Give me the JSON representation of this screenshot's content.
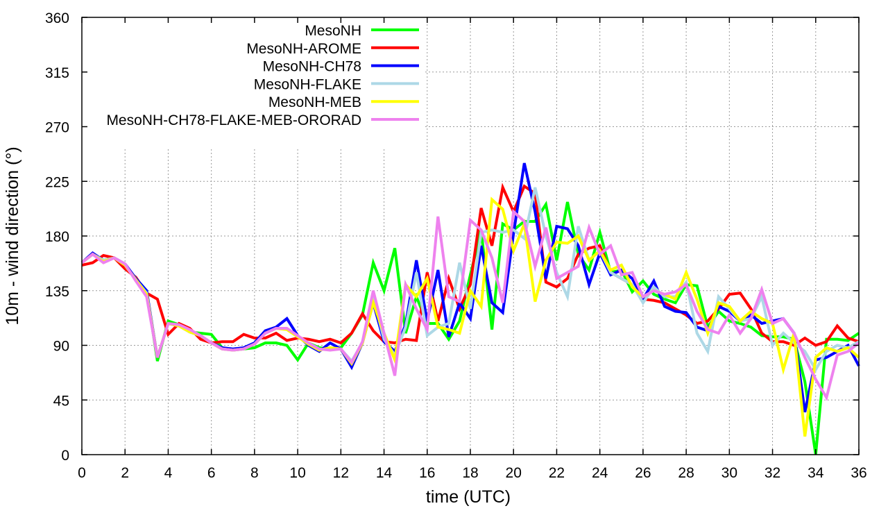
{
  "chart_data": {
    "type": "line",
    "title": "",
    "xlabel": "time (UTC)",
    "ylabel": "10m - wind direction (°)",
    "xlim": [
      0,
      36
    ],
    "ylim": [
      0,
      360
    ],
    "xticks": [
      0,
      2,
      4,
      6,
      8,
      10,
      12,
      14,
      16,
      18,
      20,
      22,
      24,
      26,
      28,
      30,
      32,
      34,
      36
    ],
    "yticks": [
      0,
      45,
      90,
      135,
      180,
      225,
      270,
      315,
      360
    ],
    "grid": true,
    "legend_position": "top-left-center",
    "x_step": 0.5,
    "series": [
      {
        "name": "MesoNH",
        "color": "#00ff00",
        "values": [
          158,
          165,
          160,
          162,
          155,
          145,
          135,
          77,
          110,
          107,
          101,
          100,
          99,
          88,
          86,
          87,
          88,
          92,
          92,
          90,
          78,
          92,
          88,
          87,
          88,
          100,
          115,
          158,
          135,
          170,
          100,
          130,
          108,
          108,
          95,
          110,
          148,
          185,
          103,
          190,
          185,
          192,
          192,
          206,
          160,
          208,
          165,
          152,
          183,
          150,
          152,
          134,
          143,
          132,
          128,
          125,
          140,
          139,
          105,
          118,
          110,
          108,
          105,
          98,
          97,
          97,
          95,
          60,
          0,
          95,
          95,
          94,
          100
        ]
      },
      {
        "name": "MesoNH-AROME",
        "color": "#ff0000",
        "values": [
          156,
          158,
          164,
          162,
          153,
          146,
          133,
          128,
          99,
          108,
          104,
          95,
          92,
          93,
          93,
          99,
          96,
          96,
          100,
          94,
          96,
          95,
          93,
          95,
          92,
          100,
          116,
          102,
          93,
          92,
          95,
          94,
          150,
          110,
          145,
          120,
          140,
          203,
          172,
          220,
          200,
          221,
          215,
          142,
          138,
          145,
          165,
          170,
          172,
          150,
          145,
          140,
          128,
          127,
          125,
          120,
          115,
          108,
          110,
          120,
          132,
          133,
          120,
          100,
          93,
          93,
          90,
          96,
          90,
          93,
          106,
          96,
          93
        ]
      },
      {
        "name": "MesoNH-CH78",
        "color": "#0000ff",
        "values": [
          158,
          166,
          160,
          162,
          157,
          145,
          135,
          80,
          108,
          106,
          101,
          98,
          92,
          88,
          87,
          88,
          92,
          102,
          105,
          112,
          98,
          90,
          85,
          92,
          87,
          72,
          92,
          125,
          93,
          85,
          107,
          160,
          110,
          152,
          97,
          125,
          112,
          172,
          125,
          117,
          182,
          240,
          200,
          145,
          188,
          186,
          172,
          140,
          166,
          148,
          152,
          145,
          128,
          143,
          122,
          118,
          117,
          105,
          102,
          122,
          118,
          110,
          115,
          108,
          110,
          112,
          100,
          35,
          78,
          80,
          85,
          90,
          73
        ]
      },
      {
        "name": "MesoNH-FLAKE",
        "color": "#add8e6",
        "values": [
          158,
          165,
          160,
          162,
          156,
          144,
          133,
          80,
          108,
          106,
          101,
          98,
          92,
          87,
          86,
          87,
          91,
          100,
          104,
          103,
          97,
          91,
          86,
          88,
          87,
          77,
          92,
          130,
          95,
          82,
          105,
          150,
          98,
          105,
          108,
          158,
          120,
          183,
          185,
          183,
          185,
          178,
          220,
          180,
          150,
          130,
          188,
          160,
          168,
          150,
          145,
          140,
          125,
          138,
          130,
          130,
          142,
          100,
          85,
          130,
          120,
          110,
          112,
          130,
          90,
          100,
          92,
          85,
          70,
          85,
          90,
          88,
          93
        ]
      },
      {
        "name": "MesoNH-MEB",
        "color": "#ffff00",
        "values": [
          158,
          165,
          159,
          162,
          156,
          144,
          132,
          80,
          108,
          106,
          101,
          98,
          92,
          87,
          86,
          87,
          91,
          100,
          104,
          103,
          97,
          91,
          86,
          88,
          87,
          75,
          92,
          125,
          100,
          78,
          140,
          130,
          145,
          105,
          103,
          100,
          135,
          122,
          210,
          202,
          168,
          190,
          126,
          160,
          175,
          174,
          180,
          160,
          168,
          152,
          156,
          138,
          130,
          135,
          132,
          128,
          150,
          128,
          100,
          125,
          122,
          110,
          118,
          112,
          108,
          70,
          100,
          15,
          80,
          88,
          85,
          88,
          80
        ]
      },
      {
        "name": "MesoNH-CH78-FLAKE-MEB-ORORAD",
        "color": "#ee82ee",
        "values": [
          158,
          165,
          158,
          162,
          157,
          143,
          130,
          80,
          108,
          107,
          103,
          98,
          92,
          87,
          86,
          87,
          91,
          100,
          104,
          104,
          98,
          92,
          87,
          86,
          87,
          76,
          93,
          135,
          100,
          65,
          140,
          120,
          103,
          196,
          130,
          126,
          193,
          185,
          162,
          125,
          200,
          192,
          155,
          187,
          145,
          150,
          155,
          187,
          165,
          172,
          148,
          150,
          130,
          135,
          132,
          134,
          140,
          118,
          103,
          100,
          115,
          100,
          112,
          136,
          108,
          112,
          100,
          80,
          62,
          47,
          82,
          85,
          92
        ]
      }
    ]
  }
}
